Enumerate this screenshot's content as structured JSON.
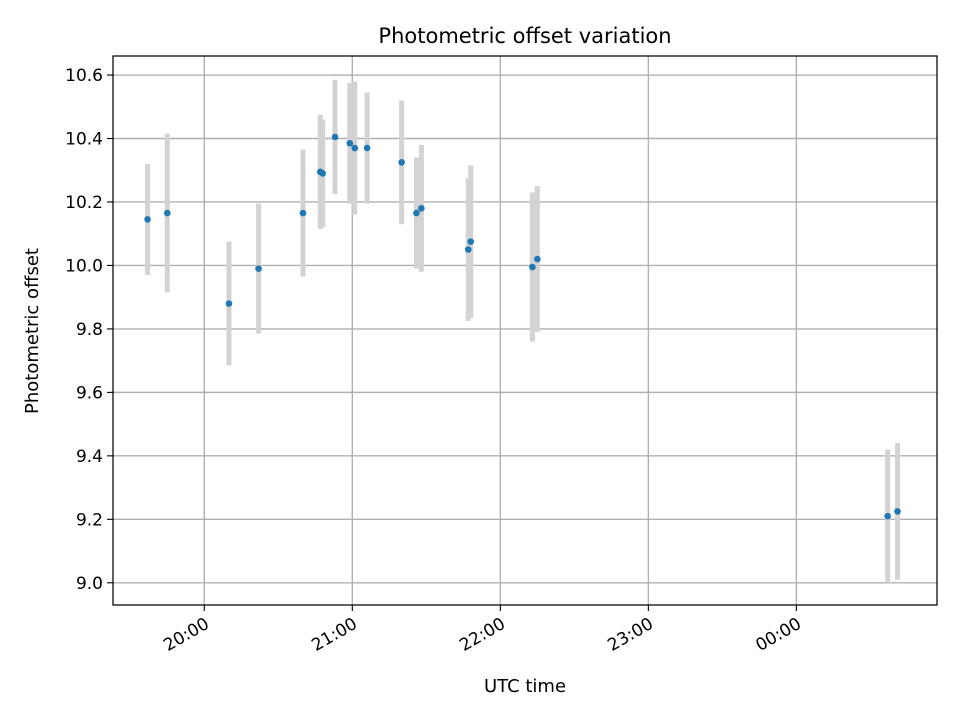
{
  "chart_data": {
    "type": "scatter",
    "title": "Photometric offset variation",
    "xlabel": "UTC time",
    "ylabel": "Photometric offset",
    "x_tick_labels": [
      "20:00",
      "21:00",
      "22:00",
      "23:00",
      "00:00"
    ],
    "y_tick_labels": [
      "9.0",
      "9.2",
      "9.4",
      "9.6",
      "9.8",
      "10.0",
      "10.2",
      "10.4",
      "10.6"
    ],
    "x_ticks_minutes": [
      0,
      60,
      120,
      180,
      240
    ],
    "y_ticks": [
      9.0,
      9.2,
      9.4,
      9.6,
      9.8,
      10.0,
      10.2,
      10.4,
      10.6
    ],
    "xlim_minutes": [
      -37,
      297
    ],
    "ylim": [
      8.93,
      10.66
    ],
    "grid": true,
    "x_unit_note": "UTC time",
    "series": [
      {
        "points": [
          {
            "t": "19:37",
            "y": 10.145,
            "err": 0.175
          },
          {
            "t": "19:45",
            "y": 10.165,
            "err": 0.25
          },
          {
            "t": "20:10",
            "y": 9.88,
            "err": 0.195
          },
          {
            "t": "20:22",
            "y": 9.99,
            "err": 0.205
          },
          {
            "t": "20:40",
            "y": 10.165,
            "err": 0.2
          },
          {
            "t": "20:47",
            "y": 10.295,
            "err": 0.18
          },
          {
            "t": "20:48",
            "y": 10.29,
            "err": 0.17
          },
          {
            "t": "20:53",
            "y": 10.405,
            "err": 0.18
          },
          {
            "t": "20:59",
            "y": 10.385,
            "err": 0.19
          },
          {
            "t": "21:01",
            "y": 10.37,
            "err": 0.21
          },
          {
            "t": "21:06",
            "y": 10.37,
            "err": 0.175
          },
          {
            "t": "21:20",
            "y": 10.325,
            "err": 0.195
          },
          {
            "t": "21:26",
            "y": 10.165,
            "err": 0.175
          },
          {
            "t": "21:28",
            "y": 10.18,
            "err": 0.2
          },
          {
            "t": "21:47",
            "y": 10.05,
            "err": 0.225
          },
          {
            "t": "21:48",
            "y": 10.075,
            "err": 0.24
          },
          {
            "t": "22:13",
            "y": 9.995,
            "err": 0.235
          },
          {
            "t": "22:15",
            "y": 10.02,
            "err": 0.23
          },
          {
            "t": "00:37",
            "y": 9.21,
            "err": 0.21
          },
          {
            "t": "00:41",
            "y": 9.225,
            "err": 0.215
          }
        ],
        "marker_color": "#1f77b4",
        "errorbar_color": "#d3d3d3"
      }
    ]
  }
}
